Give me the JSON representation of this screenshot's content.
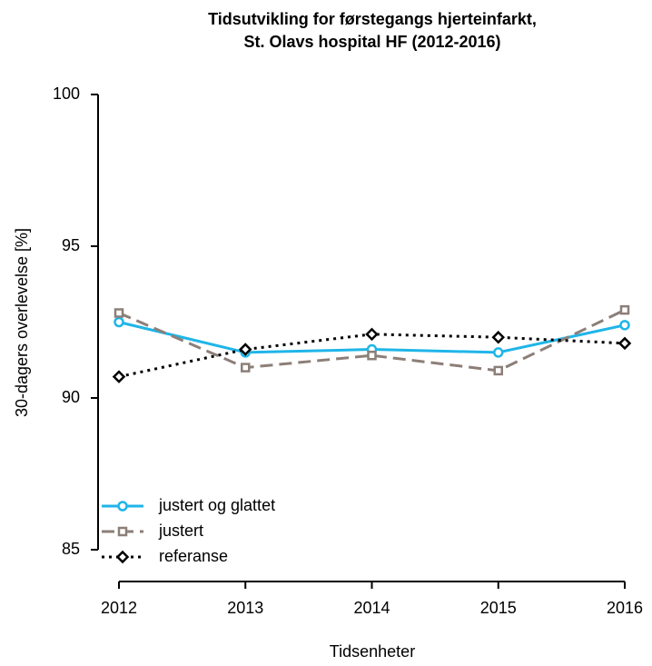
{
  "chart_data": {
    "type": "line",
    "title": [
      "Tidsutvikling for førstegangs hjerteinfarkt,",
      "St. Olavs hospital HF (2012-2016)"
    ],
    "x_label": "Tidsenheter",
    "y_label": "30-dagers overlevelse [%]",
    "x": [
      2012,
      2013,
      2014,
      2015,
      2016
    ],
    "series": [
      {
        "name": "justert og glattet",
        "color": "#1fb5e8",
        "linestyle": "solid",
        "marker": "circle",
        "values": [
          92.5,
          91.5,
          91.6,
          91.5,
          92.4
        ]
      },
      {
        "name": "justert",
        "color": "#8c7f78",
        "linestyle": "dashed",
        "marker": "square",
        "values": [
          92.8,
          91.0,
          91.4,
          90.9,
          92.9
        ]
      },
      {
        "name": "referanse",
        "color": "#000000",
        "linestyle": "dotted",
        "marker": "diamond",
        "values": [
          90.7,
          91.6,
          92.1,
          92.0,
          91.8
        ]
      }
    ],
    "xlim": [
      2012,
      2016
    ],
    "xticks": [
      2012,
      2013,
      2014,
      2015,
      2016
    ],
    "ylim": [
      85,
      100
    ],
    "yticks": [
      85,
      90,
      95,
      100
    ],
    "grid": false,
    "legend": "bottom-left"
  }
}
